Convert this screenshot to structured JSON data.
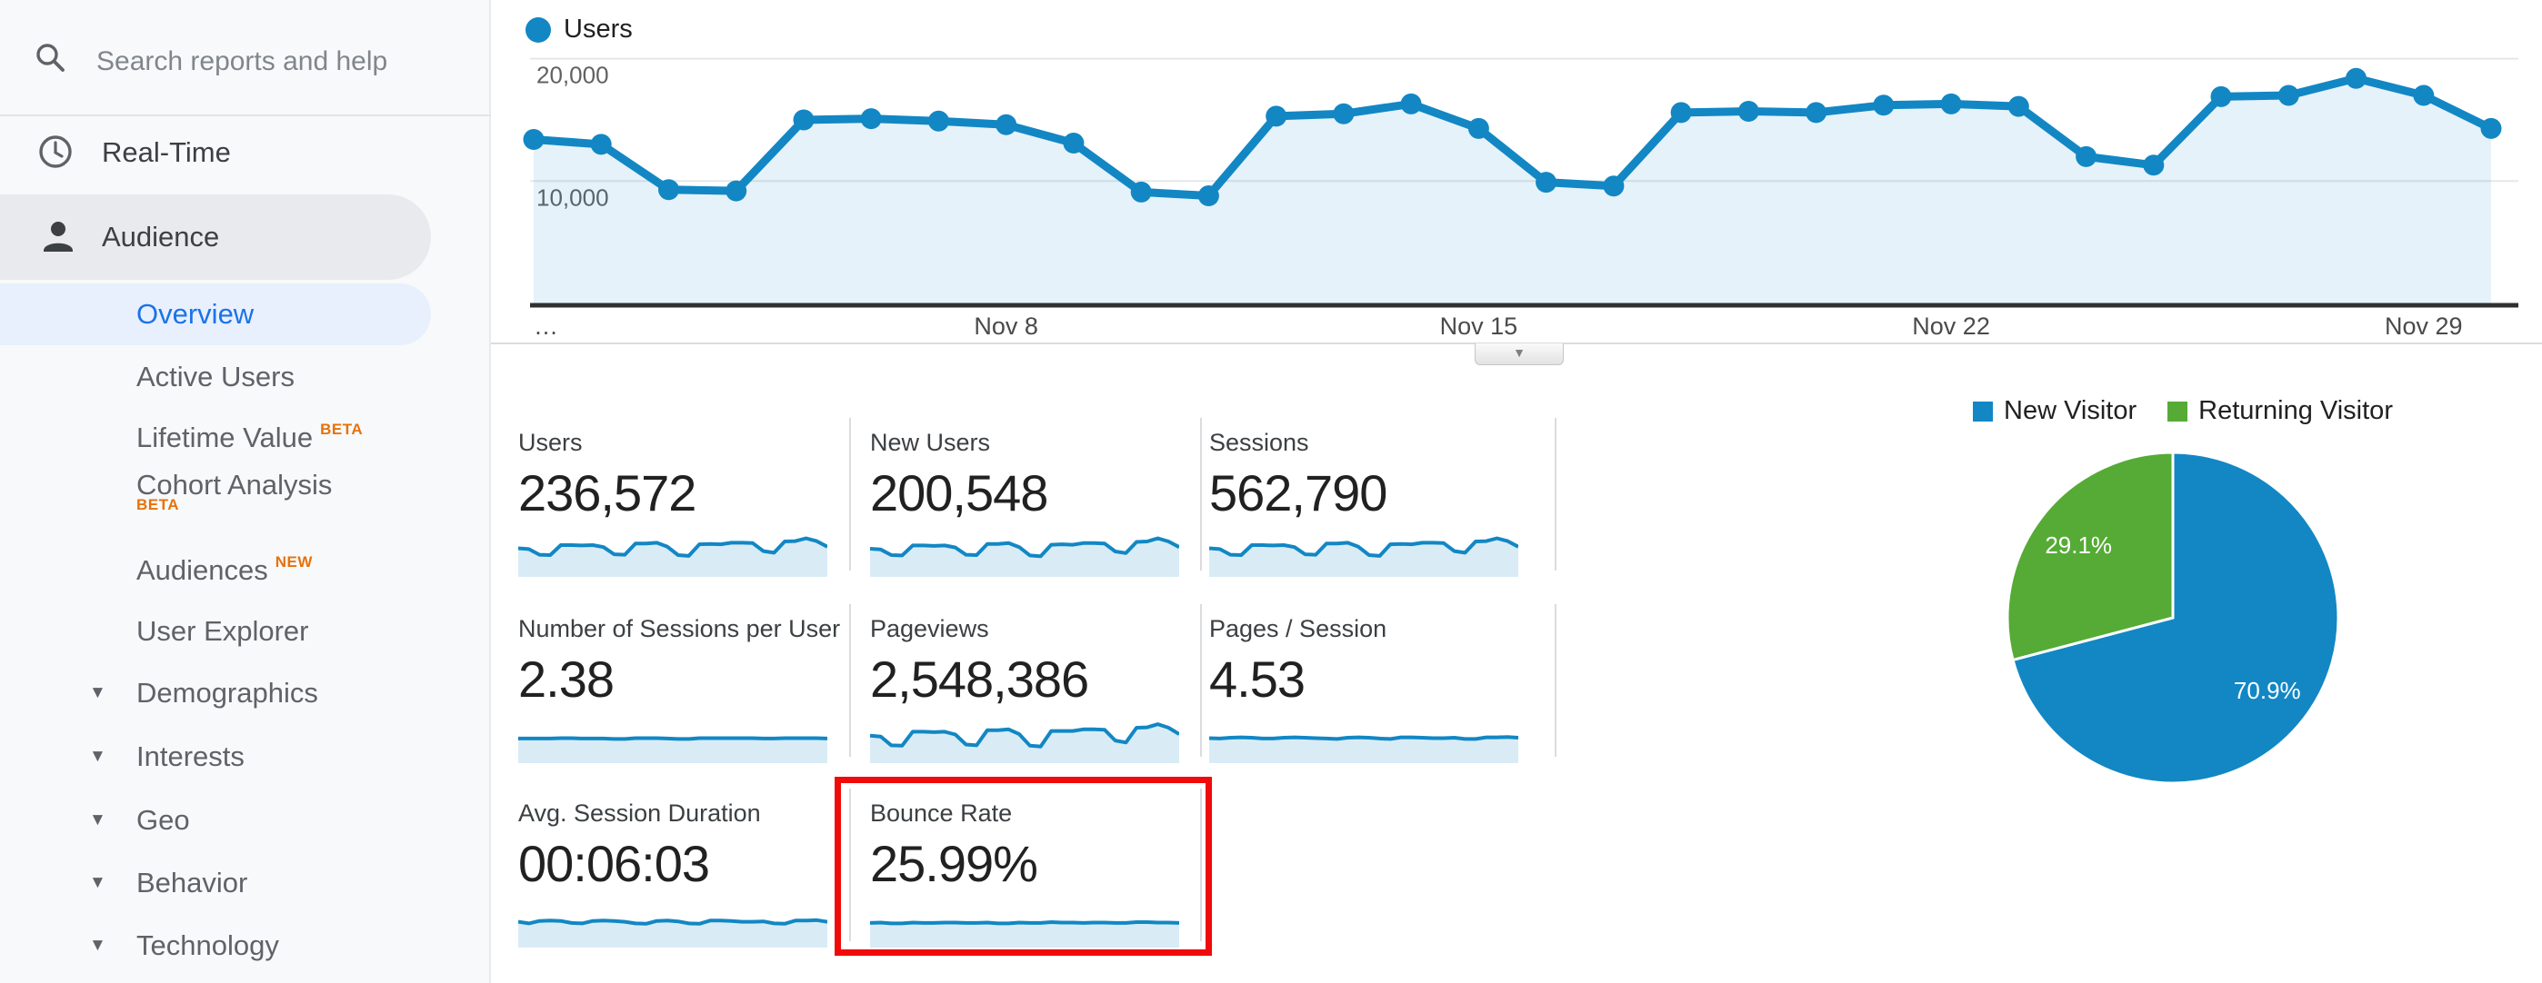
{
  "sidebar": {
    "search_placeholder": "Search reports and help",
    "real_time_label": "Real-Time",
    "audience_label": "Audience",
    "overview_label": "Overview",
    "active_users_label": "Active Users",
    "lifetime_value_label": "Lifetime Value",
    "lifetime_value_badge": "BETA",
    "cohort_label": "Cohort Analysis",
    "cohort_badge": "BETA",
    "audiences_label": "Audiences",
    "audiences_badge": "NEW",
    "user_explorer_label": "User Explorer",
    "groups": [
      "Demographics",
      "Interests",
      "Geo",
      "Behavior",
      "Technology"
    ]
  },
  "icons": {
    "chevron_down": "▼",
    "ellipsis": "…"
  },
  "colors": {
    "accent_blue": "#1287c4",
    "green": "#55ab35",
    "link_blue": "#1a73e8",
    "badge_orange": "#e8710a",
    "highlight_red": "#f10a0a",
    "area_fill": "rgba(18,135,196,0.11)",
    "spark_fill": "rgba(18,135,196,0.16)"
  },
  "chart_data": [
    {
      "type": "line",
      "title": "Users",
      "series": [
        {
          "name": "Users",
          "values": [
            13400,
            13000,
            9300,
            9200,
            15000,
            15100,
            14900,
            14600,
            13100,
            9100,
            8800,
            15300,
            15500,
            16300,
            14300,
            9900,
            9600,
            15600,
            15700,
            15600,
            16200,
            16300,
            16100,
            12000,
            11300,
            16900,
            17000,
            18400,
            17000,
            14300
          ]
        }
      ],
      "x_ticks": [
        {
          "day": 0,
          "label": "…"
        },
        {
          "day": 7,
          "label": "Nov 8"
        },
        {
          "day": 14,
          "label": "Nov 15"
        },
        {
          "day": 21,
          "label": "Nov 22"
        },
        {
          "day": 28,
          "label": "Nov 29"
        }
      ],
      "y_ticks": [
        {
          "value": 10000,
          "label": "10,000"
        },
        {
          "value": 20000,
          "label": "20,000"
        }
      ],
      "ylim": [
        0,
        20500
      ],
      "grid": true,
      "legend_position": "top-left"
    },
    {
      "type": "pie",
      "labels": [
        "New Visitor",
        "Returning Visitor"
      ],
      "values": [
        70.9,
        29.1
      ],
      "value_labels": [
        "70.9%",
        "29.1%"
      ],
      "colors": [
        "#1287c4",
        "#55ab35"
      ],
      "legend_position": "top"
    }
  ],
  "metrics": [
    {
      "label": "Users",
      "value": "236,572",
      "spark": [
        67,
        65,
        51,
        50,
        75,
        75,
        74,
        75,
        70,
        52,
        51,
        79,
        79,
        81,
        71,
        50,
        48,
        77,
        78,
        77,
        81,
        81,
        80,
        60,
        56,
        84,
        85,
        92,
        85,
        71
      ]
    },
    {
      "label": "New Users",
      "value": "200,548",
      "spark": [
        66,
        64,
        50,
        49,
        74,
        74,
        73,
        74,
        69,
        51,
        50,
        78,
        78,
        80,
        70,
        49,
        47,
        76,
        77,
        76,
        80,
        80,
        79,
        59,
        55,
        83,
        84,
        92,
        84,
        70
      ]
    },
    {
      "label": "Sessions",
      "value": "562,790",
      "spark": [
        67,
        65,
        51,
        50,
        75,
        75,
        74,
        75,
        70,
        52,
        51,
        79,
        79,
        81,
        71,
        50,
        48,
        77,
        78,
        77,
        81,
        81,
        80,
        60,
        56,
        84,
        85,
        92,
        85,
        71
      ]
    },
    {
      "label": "Number of Sessions per User",
      "value": "2.38",
      "spark": [
        57,
        57,
        57,
        57,
        58,
        58,
        57,
        57,
        57,
        56,
        56,
        58,
        58,
        58,
        57,
        56,
        56,
        58,
        58,
        58,
        58,
        58,
        58,
        57,
        57,
        58,
        58,
        58,
        58,
        57
      ]
    },
    {
      "label": "Pageviews",
      "value": "2,548,386",
      "spark": [
        64,
        62,
        40,
        39,
        74,
        74,
        73,
        74,
        67,
        42,
        40,
        78,
        78,
        80,
        68,
        39,
        37,
        76,
        76,
        76,
        80,
        80,
        79,
        52,
        47,
        84,
        85,
        93,
        84,
        68
      ]
    },
    {
      "label": "Pages / Session",
      "value": "4.53",
      "spark": [
        58,
        57,
        59,
        60,
        59,
        57,
        57,
        59,
        60,
        59,
        58,
        57,
        56,
        59,
        60,
        59,
        57,
        56,
        60,
        60,
        59,
        58,
        58,
        59,
        56,
        56,
        60,
        60,
        61,
        59
      ]
    },
    {
      "label": "Avg. Session Duration",
      "value": "00:06:03",
      "spark": [
        60,
        56,
        62,
        63,
        62,
        57,
        56,
        62,
        63,
        62,
        60,
        56,
        55,
        62,
        63,
        61,
        56,
        55,
        63,
        63,
        62,
        60,
        60,
        61,
        56,
        55,
        63,
        63,
        64,
        60
      ]
    },
    {
      "label": "Bounce Rate",
      "value": "25.99%",
      "highlighted": true,
      "spark": [
        57,
        58,
        56,
        56,
        58,
        57,
        57,
        58,
        58,
        57,
        57,
        58,
        56,
        56,
        58,
        57,
        57,
        59,
        58,
        58,
        57,
        58,
        58,
        57,
        57,
        59,
        59,
        58,
        58,
        57
      ]
    }
  ]
}
